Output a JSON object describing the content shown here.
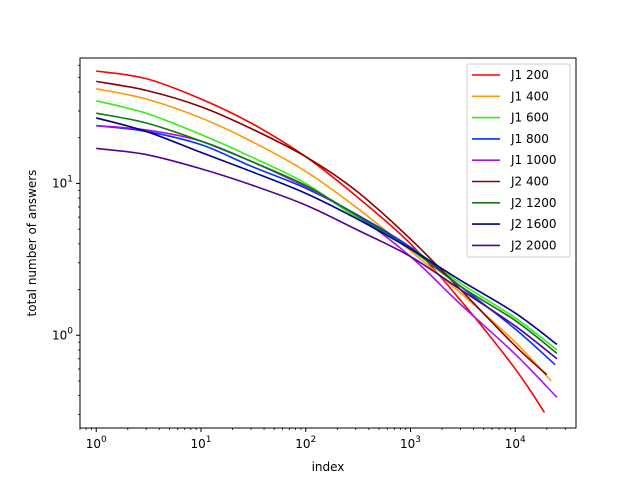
{
  "chart_data": {
    "type": "line",
    "title": "",
    "xlabel": "index",
    "ylabel": "total number of answers",
    "xscale": "log",
    "yscale": "log",
    "xlim": [
      0.7,
      38000
    ],
    "ylim": [
      0.245,
      67
    ],
    "xticks": [
      {
        "value": 1,
        "base": "10",
        "exp": "0"
      },
      {
        "value": 10,
        "base": "10",
        "exp": "1"
      },
      {
        "value": 100,
        "base": "10",
        "exp": "2"
      },
      {
        "value": 1000,
        "base": "10",
        "exp": "3"
      },
      {
        "value": 10000,
        "base": "10",
        "exp": "4"
      }
    ],
    "yticks": [
      {
        "value": 1,
        "base": "10",
        "exp": "0"
      },
      {
        "value": 10,
        "base": "10",
        "exp": "1"
      }
    ],
    "grid": false,
    "legend_position": "top-right",
    "series": [
      {
        "name": "J1 200",
        "color": "#ff0000",
        "x": [
          1,
          3,
          10,
          30,
          100,
          300,
          1000,
          3000,
          10000,
          19000
        ],
        "y": [
          55,
          49,
          36,
          25,
          15,
          8.3,
          4.0,
          1.7,
          0.6,
          0.31
        ]
      },
      {
        "name": "J1 400",
        "color": "#ff9900",
        "x": [
          1,
          3,
          10,
          30,
          100,
          300,
          1000,
          3000,
          10000,
          22000
        ],
        "y": [
          42,
          36,
          27,
          19,
          12,
          7.0,
          3.6,
          1.9,
          0.9,
          0.5
        ]
      },
      {
        "name": "J1 600",
        "color": "#33ee11",
        "x": [
          1,
          3,
          10,
          30,
          100,
          300,
          1000,
          3000,
          10000,
          25000
        ],
        "y": [
          35,
          29,
          21,
          15,
          10,
          6.0,
          3.8,
          2.2,
          1.3,
          0.8
        ]
      },
      {
        "name": "J1 800",
        "color": "#0033ff",
        "x": [
          1,
          3,
          10,
          30,
          100,
          300,
          1000,
          3000,
          10000,
          24000
        ],
        "y": [
          24,
          22,
          18,
          13,
          9.3,
          6.3,
          3.8,
          2.1,
          1.1,
          0.64
        ]
      },
      {
        "name": "J1 1000",
        "color": "#aa11ee",
        "x": [
          1,
          3,
          10,
          30,
          100,
          300,
          1000,
          3000,
          10000,
          25000
        ],
        "y": [
          24,
          22.5,
          19,
          14,
          9.5,
          6.2,
          3.3,
          1.6,
          0.75,
          0.39
        ]
      },
      {
        "name": "J2 400",
        "color": "#880000",
        "x": [
          1,
          3,
          10,
          30,
          100,
          300,
          1000,
          3000,
          10000,
          20000
        ],
        "y": [
          47,
          41,
          32,
          23,
          15,
          9.0,
          4.3,
          2.0,
          0.85,
          0.55
        ]
      },
      {
        "name": "J2 1200",
        "color": "#117711",
        "x": [
          1,
          3,
          10,
          30,
          100,
          300,
          1000,
          3000,
          10000,
          25000
        ],
        "y": [
          29,
          25,
          19,
          14,
          9.7,
          6.2,
          3.7,
          2.1,
          1.25,
          0.76
        ]
      },
      {
        "name": "J2 1600",
        "color": "#000088",
        "x": [
          1,
          3,
          10,
          30,
          100,
          300,
          1000,
          3000,
          10000,
          25000
        ],
        "y": [
          27,
          22,
          16,
          12,
          8.6,
          5.9,
          3.7,
          2.3,
          1.4,
          0.87
        ]
      },
      {
        "name": "J2 2000",
        "color": "#550099",
        "x": [
          1,
          3,
          10,
          30,
          100,
          300,
          1000,
          3000,
          10000,
          25000
        ],
        "y": [
          17,
          15.5,
          12.5,
          9.8,
          7.2,
          5.0,
          3.3,
          2.0,
          1.15,
          0.7
        ]
      }
    ]
  }
}
